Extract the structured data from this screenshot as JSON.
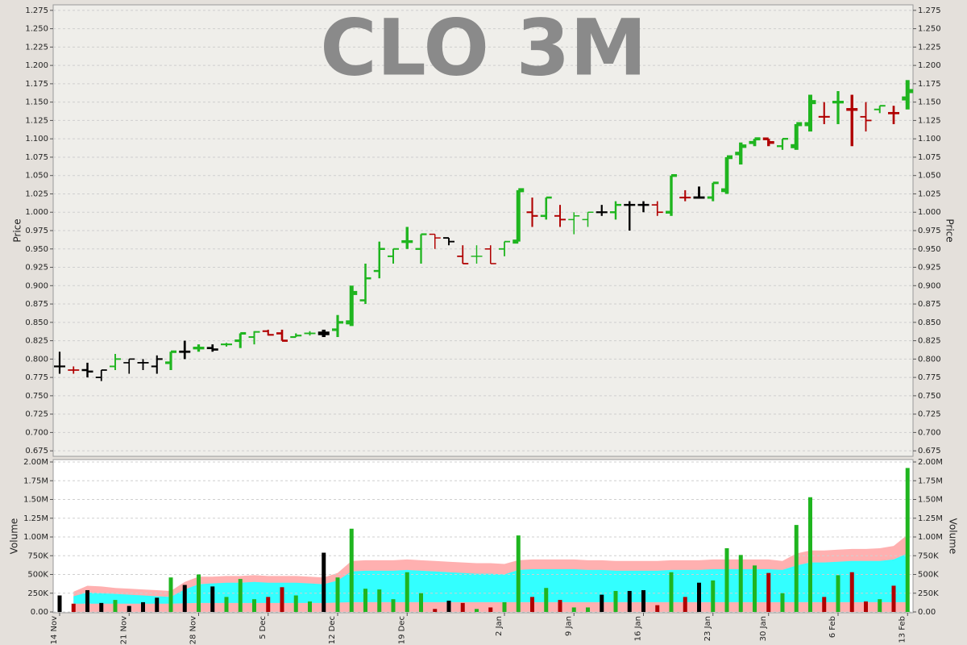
{
  "chart_data": [
    {
      "type": "ohlc",
      "title": "CLO 3M",
      "y_label": "Price",
      "ylim": [
        0.6675,
        1.2825
      ],
      "yticks": [
        {
          "value": 0.675,
          "label": "0.675"
        },
        {
          "value": 0.7,
          "label": "0.700"
        },
        {
          "value": 0.725,
          "label": "0.725"
        },
        {
          "value": 0.75,
          "label": "0.750"
        },
        {
          "value": 0.775,
          "label": "0.775"
        },
        {
          "value": 0.8,
          "label": "0.800"
        },
        {
          "value": 0.825,
          "label": "0.825"
        },
        {
          "value": 0.85,
          "label": "0.850"
        },
        {
          "value": 0.875,
          "label": "0.875"
        },
        {
          "value": 0.9,
          "label": "0.900"
        },
        {
          "value": 0.925,
          "label": "0.925"
        },
        {
          "value": 0.95,
          "label": "0.950"
        },
        {
          "value": 0.975,
          "label": "0.975"
        },
        {
          "value": 1.0,
          "label": "1.000"
        },
        {
          "value": 1.025,
          "label": "1.025"
        },
        {
          "value": 1.05,
          "label": "1.050"
        },
        {
          "value": 1.075,
          "label": "1.075"
        },
        {
          "value": 1.1,
          "label": "1.100"
        },
        {
          "value": 1.125,
          "label": "1.125"
        },
        {
          "value": 1.15,
          "label": "1.150"
        },
        {
          "value": 1.175,
          "label": "1.175"
        },
        {
          "value": 1.2,
          "label": "1.200"
        },
        {
          "value": 1.225,
          "label": "1.225"
        },
        {
          "value": 1.25,
          "label": "1.250"
        },
        {
          "value": 1.275,
          "label": "1.275"
        }
      ],
      "grid": true,
      "open": [
        0.79,
        0.785,
        0.785,
        0.775,
        0.79,
        0.795,
        0.795,
        0.79,
        0.795,
        0.81,
        0.815,
        0.815,
        0.82,
        0.825,
        0.83,
        0.838,
        0.835,
        0.83,
        0.835,
        0.835,
        0.84,
        0.85,
        0.88,
        0.92,
        0.94,
        0.96,
        0.95,
        0.97,
        0.965,
        0.94,
        0.94,
        0.95,
        0.95,
        0.96,
        1.0,
        0.995,
        0.995,
        0.99,
        0.99,
        1.0,
        1.0,
        1.01,
        1.01,
        1.01,
        1.0,
        1.02,
        1.02,
        1.02,
        1.03,
        1.08,
        1.095,
        1.1,
        1.09,
        1.09,
        1.12,
        1.13,
        1.15,
        1.14,
        1.13,
        1.14,
        1.135,
        1.155
      ],
      "high": [
        0.81,
        0.79,
        0.795,
        0.785,
        0.807,
        0.8,
        0.8,
        0.805,
        0.81,
        0.825,
        0.82,
        0.82,
        0.822,
        0.835,
        0.838,
        0.84,
        0.84,
        0.835,
        0.838,
        0.84,
        0.86,
        0.9,
        0.93,
        0.96,
        0.95,
        0.98,
        0.97,
        0.97,
        0.965,
        0.955,
        0.955,
        0.955,
        0.96,
        1.03,
        1.02,
        1.02,
        1.01,
        1.0,
        1.0,
        1.01,
        1.015,
        1.015,
        1.015,
        1.015,
        1.05,
        1.03,
        1.035,
        1.04,
        1.075,
        1.095,
        1.1,
        1.1,
        1.1,
        1.12,
        1.16,
        1.15,
        1.165,
        1.16,
        1.15,
        1.145,
        1.145,
        1.18
      ],
      "low": [
        0.78,
        0.78,
        0.775,
        0.77,
        0.785,
        0.78,
        0.785,
        0.78,
        0.785,
        0.8,
        0.81,
        0.81,
        0.817,
        0.815,
        0.82,
        0.832,
        0.825,
        0.83,
        0.832,
        0.83,
        0.83,
        0.845,
        0.875,
        0.91,
        0.93,
        0.95,
        0.93,
        0.95,
        0.955,
        0.93,
        0.93,
        0.93,
        0.94,
        0.96,
        0.98,
        0.99,
        0.98,
        0.97,
        0.98,
        0.995,
        0.99,
        0.975,
        1.0,
        0.995,
        0.995,
        1.015,
        1.02,
        1.015,
        1.025,
        1.065,
        1.09,
        1.09,
        1.085,
        1.085,
        1.11,
        1.12,
        1.12,
        1.09,
        1.11,
        1.135,
        1.12,
        1.14
      ],
      "close": [
        0.79,
        0.785,
        0.783,
        0.785,
        0.8,
        0.8,
        0.795,
        0.8,
        0.81,
        0.81,
        0.815,
        0.813,
        0.82,
        0.835,
        0.837,
        0.833,
        0.825,
        0.832,
        0.835,
        0.835,
        0.85,
        0.89,
        0.91,
        0.95,
        0.95,
        0.96,
        0.97,
        0.965,
        0.96,
        0.93,
        0.94,
        0.93,
        0.96,
        1.03,
        0.995,
        1.02,
        0.99,
        0.995,
        1.0,
        1.0,
        1.01,
        1.01,
        1.01,
        1.0,
        1.05,
        1.02,
        1.02,
        1.04,
        1.075,
        1.09,
        1.1,
        1.095,
        1.1,
        1.12,
        1.15,
        1.13,
        1.15,
        1.14,
        1.125,
        1.145,
        1.135,
        1.165
      ],
      "colors": [
        "#000000",
        "#b00000",
        "#000000",
        "#000000",
        "#1fb51f",
        "#000000",
        "#000000",
        "#000000",
        "#1fb51f",
        "#000000",
        "#1fb51f",
        "#000000",
        "#1fb51f",
        "#1fb51f",
        "#1fb51f",
        "#b00000",
        "#b00000",
        "#1fb51f",
        "#1fb51f",
        "#000000",
        "#1fb51f",
        "#1fb51f",
        "#1fb51f",
        "#1fb51f",
        "#1fb51f",
        "#1fb51f",
        "#1fb51f",
        "#b00000",
        "#000000",
        "#b00000",
        "#1fb51f",
        "#b00000",
        "#1fb51f",
        "#1fb51f",
        "#b00000",
        "#1fb51f",
        "#b00000",
        "#1fb51f",
        "#1fb51f",
        "#000000",
        "#1fb51f",
        "#000000",
        "#000000",
        "#b00000",
        "#1fb51f",
        "#b00000",
        "#000000",
        "#1fb51f",
        "#1fb51f",
        "#1fb51f",
        "#1fb51f",
        "#b00000",
        "#1fb51f",
        "#1fb51f",
        "#1fb51f",
        "#b00000",
        "#1fb51f",
        "#b00000",
        "#b00000",
        "#1fb51f",
        "#b00000",
        "#1fb51f"
      ]
    },
    {
      "type": "bar",
      "y_label": "Volume",
      "categories": [
        "14 Nov",
        null,
        null,
        null,
        null,
        "21 Nov",
        null,
        null,
        null,
        null,
        "28 Nov",
        null,
        null,
        null,
        null,
        "5 Dec",
        null,
        null,
        null,
        null,
        "12 Dec",
        null,
        null,
        null,
        null,
        "19 Dec",
        null,
        null,
        null,
        null,
        null,
        null,
        "2 Jan",
        null,
        null,
        null,
        null,
        "9 Jan",
        null,
        null,
        null,
        null,
        "16 Jan",
        null,
        null,
        null,
        null,
        "23 Jan",
        null,
        null,
        null,
        "30 Jan",
        null,
        null,
        null,
        null,
        "6 Feb",
        null,
        null,
        null,
        null,
        "13 Feb"
      ],
      "ylim": [
        0,
        2000000
      ],
      "yticks": [
        {
          "value": 0,
          "label": "0.00"
        },
        {
          "value": 250000,
          "label": "250K"
        },
        {
          "value": 500000,
          "label": "500K"
        },
        {
          "value": 750000,
          "label": "750K"
        },
        {
          "value": 1000000,
          "label": "1.00M"
        },
        {
          "value": 1250000,
          "label": "1.25M"
        },
        {
          "value": 1500000,
          "label": "1.50M"
        },
        {
          "value": 1750000,
          "label": "1.75M"
        },
        {
          "value": 2000000,
          "label": "2.00M"
        }
      ],
      "grid": true,
      "values": [
        220000,
        110000,
        290000,
        120000,
        160000,
        80000,
        130000,
        190000,
        460000,
        360000,
        500000,
        340000,
        200000,
        440000,
        170000,
        200000,
        330000,
        220000,
        140000,
        790000,
        460000,
        1110000,
        310000,
        300000,
        170000,
        530000,
        250000,
        40000,
        150000,
        120000,
        40000,
        60000,
        130000,
        1020000,
        200000,
        320000,
        160000,
        60000,
        60000,
        230000,
        280000,
        280000,
        290000,
        90000,
        530000,
        200000,
        390000,
        420000,
        850000,
        760000,
        620000,
        520000,
        250000,
        1160000,
        1530000,
        200000,
        490000,
        530000,
        140000,
        170000,
        350000,
        1920000
      ],
      "band_upper": [
        null,
        270000,
        350000,
        340000,
        320000,
        310000,
        300000,
        290000,
        280000,
        400000,
        470000,
        470000,
        480000,
        480000,
        490000,
        480000,
        480000,
        480000,
        470000,
        460000,
        520000,
        680000,
        690000,
        690000,
        690000,
        700000,
        690000,
        680000,
        670000,
        660000,
        650000,
        650000,
        640000,
        690000,
        700000,
        700000,
        700000,
        700000,
        690000,
        690000,
        680000,
        680000,
        680000,
        680000,
        690000,
        690000,
        690000,
        700000,
        700000,
        700000,
        700000,
        700000,
        680000,
        780000,
        820000,
        820000,
        830000,
        840000,
        840000,
        850000,
        880000,
        1030000
      ],
      "band_inner_upper": [
        null,
        210000,
        260000,
        250000,
        240000,
        230000,
        220000,
        210000,
        200000,
        300000,
        370000,
        380000,
        390000,
        390000,
        400000,
        390000,
        390000,
        390000,
        380000,
        370000,
        420000,
        540000,
        550000,
        550000,
        550000,
        560000,
        550000,
        540000,
        530000,
        520000,
        510000,
        510000,
        500000,
        560000,
        570000,
        570000,
        570000,
        570000,
        560000,
        560000,
        550000,
        550000,
        550000,
        550000,
        560000,
        560000,
        560000,
        570000,
        570000,
        570000,
        570000,
        570000,
        560000,
        620000,
        660000,
        660000,
        670000,
        680000,
        680000,
        680000,
        700000,
        780000
      ],
      "band_inner_lower": [
        null,
        110000,
        110000,
        110000,
        110000,
        110000,
        110000,
        110000,
        110000,
        115000,
        120000,
        120000,
        120000,
        120000,
        120000,
        120000,
        120000,
        120000,
        120000,
        120000,
        125000,
        130000,
        130000,
        130000,
        130000,
        130000,
        130000,
        130000,
        130000,
        130000,
        130000,
        130000,
        130000,
        130000,
        130000,
        130000,
        130000,
        130000,
        130000,
        130000,
        130000,
        130000,
        130000,
        130000,
        130000,
        130000,
        130000,
        130000,
        130000,
        130000,
        130000,
        130000,
        130000,
        130000,
        130000,
        130000,
        130000,
        130000,
        130000,
        130000,
        130000,
        130000
      ],
      "band_colors": [
        "#ffb0b0",
        "#33ffff"
      ]
    }
  ]
}
